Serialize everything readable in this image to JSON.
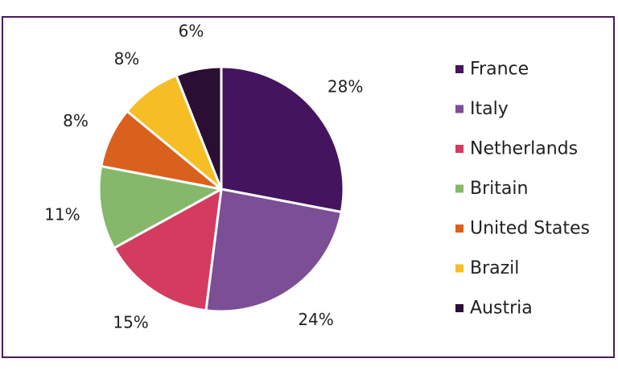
{
  "chart_data": {
    "type": "pie",
    "categories": [
      "France",
      "Italy",
      "Netherlands",
      "Britain",
      "United States",
      "Brazil",
      "Austria"
    ],
    "values": [
      28,
      24,
      15,
      11,
      8,
      8,
      6
    ],
    "value_labels": [
      "28%",
      "24%",
      "15%",
      "11%",
      "8%",
      "8%",
      "6%"
    ],
    "colors": [
      "#45145e",
      "#7b4e96",
      "#d33c5e",
      "#86b86b",
      "#d9601d",
      "#f6bd25",
      "#2b0e33"
    ],
    "start_angle": "top (12 o'clock)",
    "direction": "clockwise",
    "legend_position": "right",
    "title": ""
  }
}
